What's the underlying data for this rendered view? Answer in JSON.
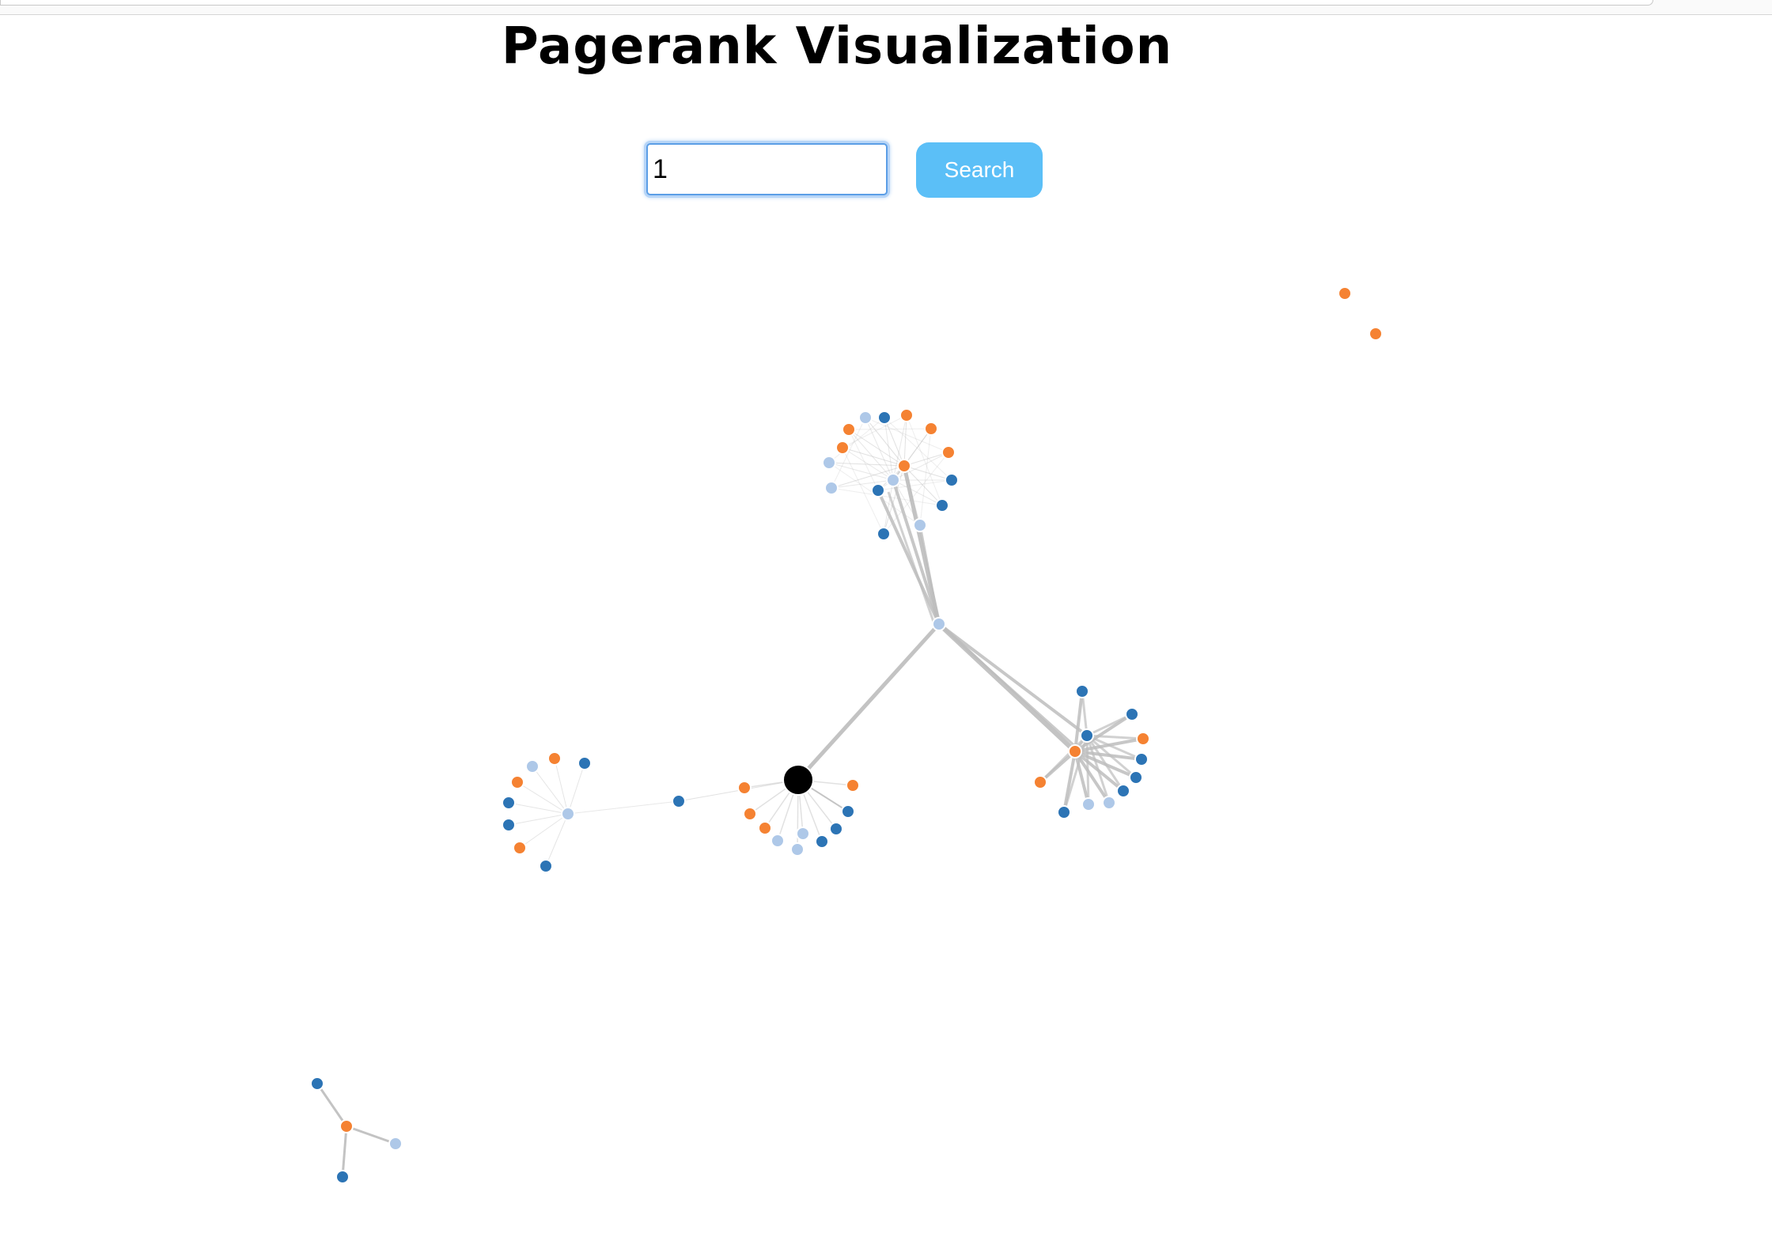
{
  "page": {
    "title": "Pagerank Visualization"
  },
  "search": {
    "value": "1",
    "button_label": "Search"
  },
  "colors": {
    "dark_blue": "#2c74b5",
    "light_blue": "#aec8e8",
    "orange": "#f58232",
    "selected": "#000000",
    "edge": "#bdbdbd",
    "button": "#5bbff7"
  }
}
